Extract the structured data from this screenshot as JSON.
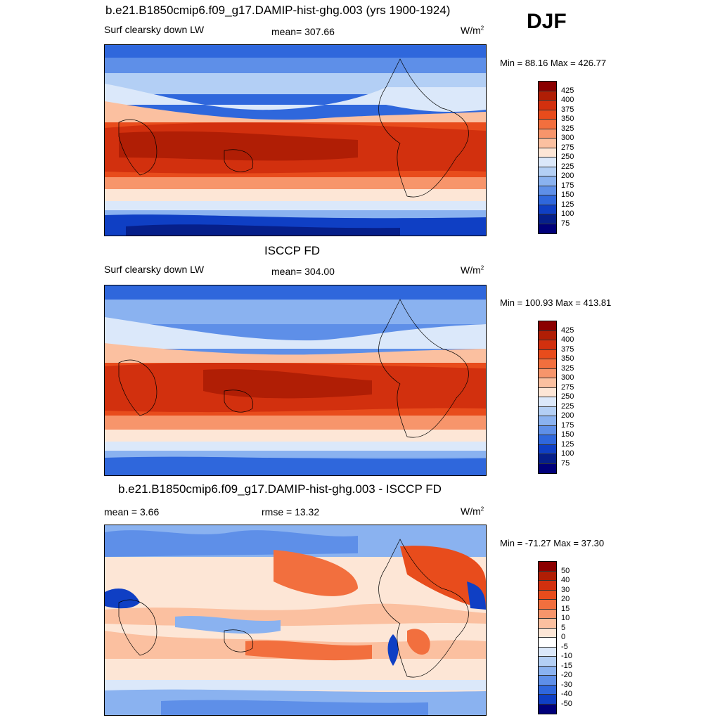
{
  "season": "DJF",
  "panels": [
    {
      "id": "model",
      "title": "b.e21.B1850cmip6.f09_g17.DAMIP-hist-ghg.003 (yrs 1900-1924)",
      "left_label": "Surf clearsky down LW",
      "center_label": "mean= 307.66",
      "units": "W/m",
      "units_exp": "2",
      "minmax": "Min =  88.16 Max = 426.77",
      "colorbar_labels": [
        "425",
        "400",
        "375",
        "350",
        "325",
        "300",
        "275",
        "250",
        "225",
        "200",
        "175",
        "150",
        "125",
        "100",
        "75"
      ]
    },
    {
      "id": "obs",
      "title": "ISCCP FD",
      "left_label": "Surf clearsky down LW",
      "center_label": "mean= 304.00",
      "units": "W/m",
      "units_exp": "2",
      "minmax": "Min = 100.93 Max = 413.81",
      "colorbar_labels": [
        "425",
        "400",
        "375",
        "350",
        "325",
        "300",
        "275",
        "250",
        "225",
        "200",
        "175",
        "150",
        "125",
        "100",
        "75"
      ]
    },
    {
      "id": "diff",
      "title": "b.e21.B1850cmip6.f09_g17.DAMIP-hist-ghg.003 - ISCCP FD",
      "left_label": "mean =   3.66",
      "center_label": "rmse =  13.32",
      "units": "W/m",
      "units_exp": "2",
      "minmax": "Min = -71.27 Max =  37.30",
      "colorbar_labels": [
        "50",
        "40",
        "30",
        "20",
        "15",
        "10",
        "5",
        "0",
        "-5",
        "-10",
        "-15",
        "-20",
        "-30",
        "-40",
        "-50"
      ]
    }
  ],
  "colors": {
    "abs_scale": [
      "#8b0000",
      "#b01e05",
      "#d2300e",
      "#e84c1c",
      "#f26f3e",
      "#f7956b",
      "#fbc0a0",
      "#fde6d6",
      "#dbe8fa",
      "#b3cff5",
      "#8ab2f0",
      "#5e8fe8",
      "#2f67dc",
      "#0f3fc4",
      "#061f8a",
      "#00007a"
    ],
    "diff_scale": [
      "#8b0000",
      "#b01e05",
      "#d2300e",
      "#e84c1c",
      "#f26f3e",
      "#f7956b",
      "#fbc0a0",
      "#fde6d6",
      "#ffffff",
      "#dbe8fa",
      "#b3cff5",
      "#8ab2f0",
      "#5e8fe8",
      "#2f67dc",
      "#0f3fc4",
      "#00007a"
    ]
  }
}
